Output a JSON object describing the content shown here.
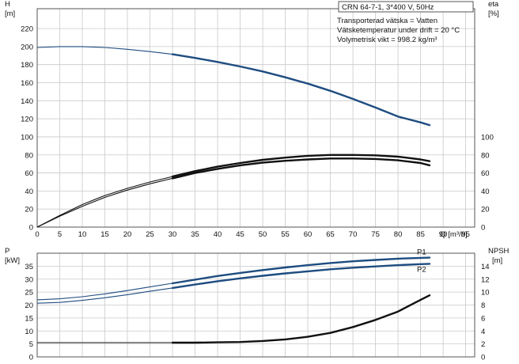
{
  "chart_data": [
    {
      "panel": "upper",
      "type": "line",
      "title": "CRN 64-7-1, 3*400 V, 50Hz",
      "notes": [
        "Transporterad vätska = Vatten",
        "Vätsketemperatur under drift = 20 °C",
        "Volymetrisk vikt = 998.2 kg/m³"
      ],
      "ylabel": "H",
      "yunit": "[m]",
      "ylabel_right": "eta",
      "yunit_right": "[%]",
      "xlabel": "Q",
      "xunit": "[m³/h]",
      "xlim": [
        0,
        97
      ],
      "ylim": [
        0,
        242
      ],
      "ylim_right": [
        0,
        242
      ],
      "yticks": [
        0,
        20,
        40,
        60,
        80,
        100,
        120,
        140,
        160,
        180,
        200,
        220
      ],
      "yticks_right": [
        0,
        20,
        40,
        60,
        80,
        100
      ],
      "xticks": [
        0,
        5,
        10,
        15,
        20,
        25,
        30,
        35,
        40,
        45,
        50,
        55,
        60,
        65,
        70,
        75,
        80,
        85,
        90,
        95
      ],
      "grid": true,
      "series": [
        {
          "axis": "left",
          "color": "#1e4c80",
          "x": [
            0,
            5,
            10,
            15,
            20,
            25,
            30,
            35,
            40,
            45,
            50,
            55,
            60,
            65,
            70,
            75,
            80,
            85,
            87
          ],
          "y": [
            199,
            200,
            200,
            199,
            197,
            194.5,
            191.5,
            187.5,
            183,
            178,
            172.5,
            166,
            159,
            151,
            142,
            132.5,
            122.5,
            116,
            113
          ],
          "bold_from_x": 30
        },
        {
          "axis": "right",
          "color": "#111111",
          "x": [
            0,
            5,
            10,
            15,
            20,
            25,
            30,
            35,
            40,
            45,
            50,
            55,
            60,
            65,
            70,
            75,
            80,
            85,
            87
          ],
          "y": [
            0,
            13,
            25,
            35,
            43,
            50,
            56,
            62,
            67,
            71,
            74.5,
            77,
            79,
            80,
            80,
            79.5,
            78,
            75,
            73
          ],
          "bold_from_x": 30
        },
        {
          "axis": "right",
          "color": "#111111",
          "x": [
            0,
            5,
            10,
            15,
            20,
            25,
            30,
            35,
            40,
            45,
            50,
            55,
            60,
            65,
            70,
            75,
            80,
            85,
            87
          ],
          "y": [
            0,
            12,
            23,
            33,
            41,
            48,
            54,
            60,
            64.5,
            68.5,
            71.5,
            73.5,
            75,
            76,
            76,
            75.5,
            74,
            71,
            68.5
          ],
          "bold_from_x": 30
        }
      ]
    },
    {
      "panel": "lower",
      "type": "line",
      "ylabel": "P",
      "yunit": "[kW]",
      "ylabel_right": "NPSH",
      "yunit_right": "[m]",
      "xlim": [
        0,
        97
      ],
      "ylim": [
        0,
        40
      ],
      "ylim_right": [
        0,
        16
      ],
      "yticks": [
        0,
        5,
        10,
        15,
        20,
        25,
        30,
        35
      ],
      "yticks_right": [
        0,
        2,
        4,
        6,
        8,
        10,
        12,
        14
      ],
      "grid": true,
      "series": [
        {
          "name": "P1",
          "axis": "left",
          "color": "#1e4c80",
          "x": [
            0,
            5,
            10,
            15,
            20,
            25,
            30,
            35,
            40,
            45,
            50,
            55,
            60,
            65,
            70,
            75,
            80,
            85,
            87
          ],
          "y": [
            22,
            22.4,
            23.2,
            24.3,
            25.6,
            27,
            28.4,
            29.8,
            31.2,
            32.4,
            33.5,
            34.5,
            35.4,
            36.2,
            36.9,
            37.4,
            37.9,
            38.2,
            38.3
          ],
          "bold_from_x": 30
        },
        {
          "name": "P2",
          "axis": "left",
          "color": "#1e4c80",
          "x": [
            0,
            5,
            10,
            15,
            20,
            25,
            30,
            35,
            40,
            45,
            50,
            55,
            60,
            65,
            70,
            75,
            80,
            85,
            87
          ],
          "y": [
            20.7,
            21,
            21.8,
            22.8,
            24,
            25.3,
            26.6,
            27.9,
            29.2,
            30.3,
            31.3,
            32.2,
            33,
            33.8,
            34.4,
            34.9,
            35.4,
            35.8,
            35.9
          ],
          "bold_from_x": 30
        },
        {
          "name": "NPSH",
          "axis": "right",
          "color": "#111111",
          "x": [
            0,
            30,
            35,
            40,
            45,
            50,
            55,
            60,
            65,
            70,
            75,
            80,
            85,
            87
          ],
          "y": [
            2.2,
            2.2,
            2.2,
            2.25,
            2.3,
            2.45,
            2.7,
            3.1,
            3.7,
            4.6,
            5.7,
            7,
            8.8,
            9.5
          ],
          "bold_from_x": 30
        }
      ]
    }
  ]
}
